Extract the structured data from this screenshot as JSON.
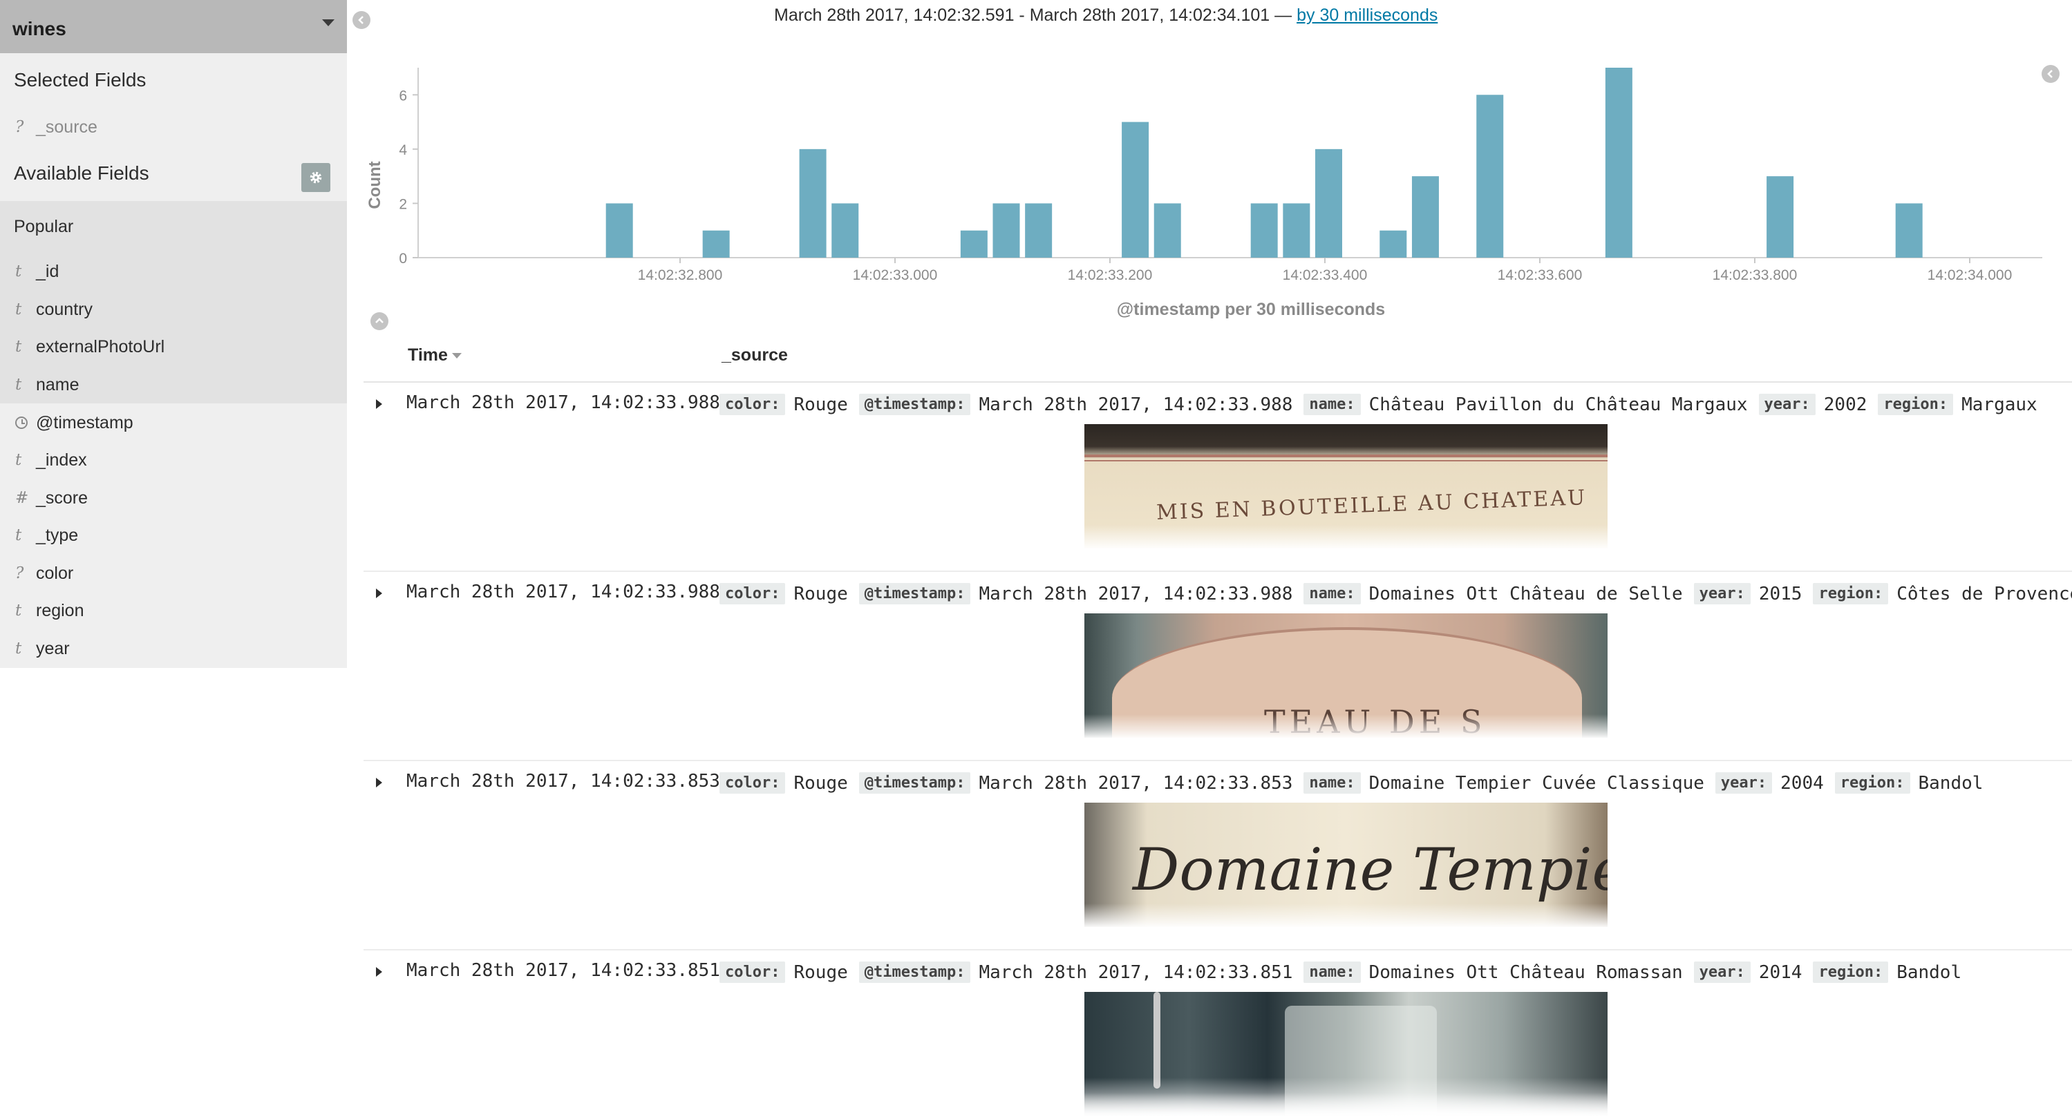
{
  "sidebar": {
    "index_name": "wines",
    "selected_title": "Selected Fields",
    "selected_fields": [
      {
        "type": "?",
        "name": "_source"
      }
    ],
    "available_title": "Available Fields",
    "popular_title": "Popular",
    "popular_fields": [
      {
        "type": "t",
        "name": "_id"
      },
      {
        "type": "t",
        "name": "country"
      },
      {
        "type": "t",
        "name": "externalPhotoUrl"
      },
      {
        "type": "t",
        "name": "name"
      }
    ],
    "other_fields": [
      {
        "type": "clock",
        "name": "@timestamp"
      },
      {
        "type": "t",
        "name": "_index"
      },
      {
        "type": "#",
        "name": "_score"
      },
      {
        "type": "t",
        "name": "_type"
      },
      {
        "type": "?",
        "name": "color"
      },
      {
        "type": "t",
        "name": "region"
      },
      {
        "type": "t",
        "name": "year"
      }
    ]
  },
  "header": {
    "time_range": "March 28th 2017, 14:02:32.591 - March 28th 2017, 14:02:34.101 —",
    "interval_link": "by 30 milliseconds"
  },
  "chart_data": {
    "type": "bar",
    "ylabel": "Count",
    "xlabel": "@timestamp per 30 milliseconds",
    "x_unit": "milliseconds after 14:02:32.591",
    "ylim": [
      0,
      7
    ],
    "yticks": [
      0,
      2,
      4,
      6
    ],
    "xticks": [
      "14:02:32.800",
      "14:02:33.000",
      "14:02:33.200",
      "14:02:33.400",
      "14:02:33.600",
      "14:02:33.800",
      "14:02:34.000"
    ],
    "bars": [
      {
        "t": 0.14,
        "count": 2
      },
      {
        "t": 0.23,
        "count": 1
      },
      {
        "t": 0.32,
        "count": 4
      },
      {
        "t": 0.35,
        "count": 2
      },
      {
        "t": 0.47,
        "count": 1
      },
      {
        "t": 0.5,
        "count": 2
      },
      {
        "t": 0.53,
        "count": 2
      },
      {
        "t": 0.62,
        "count": 5
      },
      {
        "t": 0.65,
        "count": 2
      },
      {
        "t": 0.74,
        "count": 2
      },
      {
        "t": 0.77,
        "count": 2
      },
      {
        "t": 0.8,
        "count": 4
      },
      {
        "t": 0.86,
        "count": 1
      },
      {
        "t": 0.89,
        "count": 3
      },
      {
        "t": 0.95,
        "count": 6
      },
      {
        "t": 1.07,
        "count": 7
      },
      {
        "t": 1.22,
        "count": 3
      },
      {
        "t": 1.34,
        "count": 2
      }
    ],
    "bar_color": "#6eadc1",
    "grid": false,
    "legend": "none"
  },
  "table": {
    "col_time": "Time",
    "col_source": "_source",
    "rows": [
      {
        "time": "March 28th 2017, 14:02:33.988",
        "fields": [
          {
            "k": "color:",
            "v": "Rouge"
          },
          {
            "k": "@timestamp:",
            "v": "March 28th 2017, 14:02:33.988"
          },
          {
            "k": "name:",
            "v": "Château Pavillon du Château Margaux"
          },
          {
            "k": "year:",
            "v": "2002"
          },
          {
            "k": "region:",
            "v": "Margaux"
          }
        ],
        "photo": "bottle-label-margaux",
        "photo_text": "MIS EN BOUTEILLE AU CHATEAU"
      },
      {
        "time": "March 28th 2017, 14:02:33.988",
        "fields": [
          {
            "k": "color:",
            "v": "Rouge"
          },
          {
            "k": "@timestamp:",
            "v": "March 28th 2017, 14:02:33.988"
          },
          {
            "k": "name:",
            "v": "Domaines Ott Château de Selle"
          },
          {
            "k": "year:",
            "v": "2015"
          },
          {
            "k": "region:",
            "v": "Côtes de Provence"
          }
        ],
        "photo": "bottle-label-selle",
        "photo_text": "TEAU DE S"
      },
      {
        "time": "March 28th 2017, 14:02:33.853",
        "fields": [
          {
            "k": "color:",
            "v": "Rouge"
          },
          {
            "k": "@timestamp:",
            "v": "March 28th 2017, 14:02:33.853"
          },
          {
            "k": "name:",
            "v": "Domaine Tempier Cuvée Classique"
          },
          {
            "k": "year:",
            "v": "2004"
          },
          {
            "k": "region:",
            "v": "Bandol"
          }
        ],
        "photo": "bottle-label-tempier",
        "photo_text": "Domaine Tempie"
      },
      {
        "time": "March 28th 2017, 14:02:33.851",
        "fields": [
          {
            "k": "color:",
            "v": "Rouge"
          },
          {
            "k": "@timestamp:",
            "v": "March 28th 2017, 14:02:33.851"
          },
          {
            "k": "name:",
            "v": "Domaines Ott Château Romassan"
          },
          {
            "k": "year:",
            "v": "2014"
          },
          {
            "k": "region:",
            "v": "Bandol"
          }
        ],
        "photo": "kitchen-bottle-photo",
        "photo_text": ""
      }
    ]
  }
}
